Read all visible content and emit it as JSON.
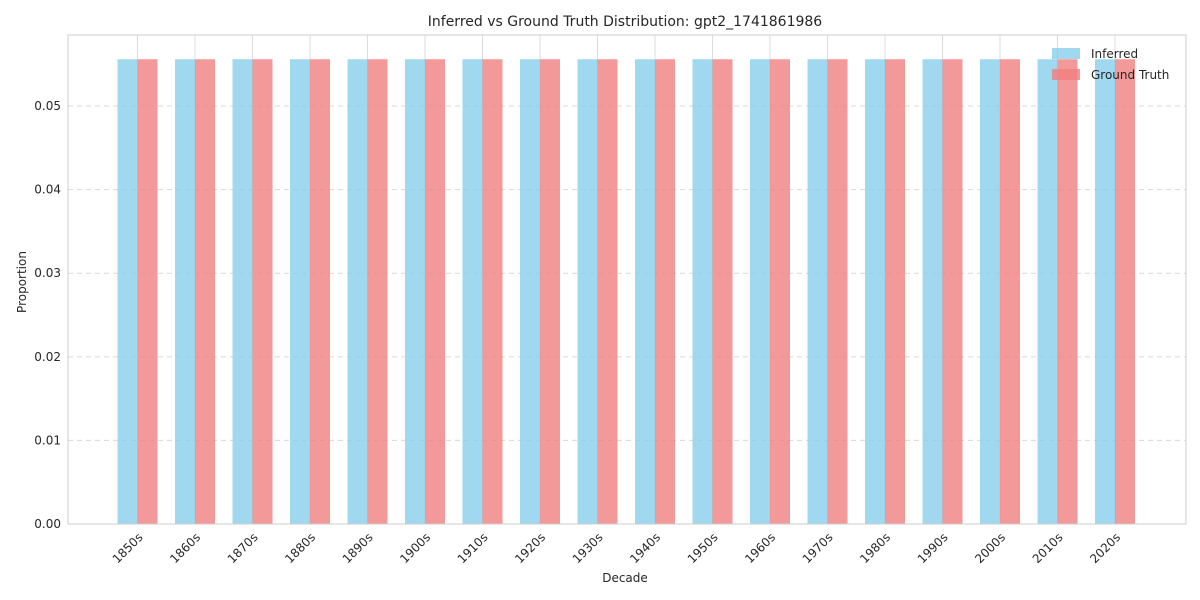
{
  "chart_data": {
    "type": "bar",
    "title": "Inferred vs Ground Truth Distribution: gpt2_1741861986",
    "xlabel": "Decade",
    "ylabel": "Proportion",
    "ylim": [
      0,
      0.0585
    ],
    "yticks": [
      "0.00",
      "0.01",
      "0.02",
      "0.03",
      "0.04",
      "0.05"
    ],
    "ytick_values": [
      0,
      0.01,
      0.02,
      0.03,
      0.04,
      0.05
    ],
    "grid": true,
    "legend_position": "top-right",
    "categories": [
      "1850s",
      "1860s",
      "1870s",
      "1880s",
      "1890s",
      "1900s",
      "1910s",
      "1920s",
      "1930s",
      "1940s",
      "1950s",
      "1960s",
      "1970s",
      "1980s",
      "1990s",
      "2000s",
      "2010s",
      "2020s"
    ],
    "series": [
      {
        "name": "Inferred",
        "color": "#87CEEB",
        "values": [
          0.0556,
          0.0556,
          0.0556,
          0.0556,
          0.0556,
          0.0556,
          0.0556,
          0.0556,
          0.0556,
          0.0556,
          0.0556,
          0.0556,
          0.0556,
          0.0556,
          0.0556,
          0.0556,
          0.0556,
          0.0556
        ]
      },
      {
        "name": "Ground Truth",
        "color": "#F08080",
        "values": [
          0.0556,
          0.0556,
          0.0556,
          0.0556,
          0.0556,
          0.0556,
          0.0556,
          0.0556,
          0.0556,
          0.0556,
          0.0556,
          0.0556,
          0.0556,
          0.0556,
          0.0556,
          0.0556,
          0.0556,
          0.0556
        ]
      }
    ]
  }
}
